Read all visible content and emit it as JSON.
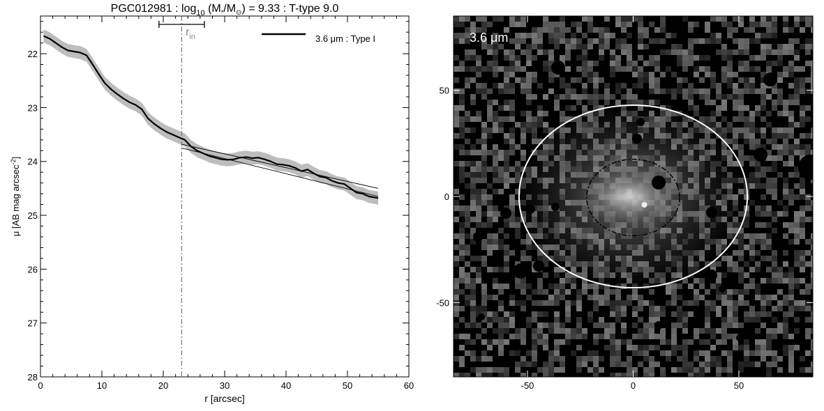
{
  "chart_data": [
    {
      "type": "line",
      "title": "PGC012981 : log",
      "title_sub": "10",
      "title_rest_a": " (M",
      "title_sub_star": "*",
      "title_rest_b": "/M",
      "title_sub_sun": "⊙",
      "title_rest_c": ") = 9.33 : T-type 9.0",
      "xlabel": "r [arcsec]",
      "ylabel": "μ [AB mag arcsec",
      "ylabel_sup": "-2",
      "ylabel_end": "]",
      "xlim": [
        0,
        60
      ],
      "ylim": [
        28,
        21.3
      ],
      "y_inverted": true,
      "xticks": [
        0,
        10,
        20,
        30,
        40,
        50,
        60
      ],
      "yticks": [
        22,
        23,
        24,
        25,
        26,
        27,
        28
      ],
      "legend_label": "3.6 μm : Type I",
      "legend_position": "top-right",
      "rin_label": "r",
      "rin_sub": "in",
      "rin_value": 23.0,
      "rin_errbar": [
        19.3,
        26.7
      ],
      "series": [
        {
          "name": "3.6 μm : Type I",
          "x": [
            0.5,
            1.5,
            2.5,
            3.5,
            4.5,
            5.5,
            6.5,
            7.5,
            8.5,
            9.5,
            10.5,
            11.5,
            12.5,
            13.5,
            14.5,
            15.5,
            16.5,
            17.5,
            18.5,
            19.5,
            20.5,
            21.5,
            22.5,
            23.5,
            24.5,
            25.5,
            26.5,
            27.5,
            28.5,
            29.5,
            30.5,
            31.5,
            32.5,
            33.5,
            34.5,
            35.5,
            36.5,
            37.5,
            38.5,
            39.5,
            40.5,
            41.5,
            42.5,
            43.5,
            44.5,
            45.5,
            46.5,
            47.5,
            48.5,
            49.5,
            50.5,
            51.5,
            52.5,
            53.5,
            55.0
          ],
          "y": [
            21.67,
            21.72,
            21.8,
            21.88,
            21.94,
            21.96,
            21.98,
            22.03,
            22.2,
            22.38,
            22.55,
            22.66,
            22.75,
            22.83,
            22.9,
            22.95,
            23.03,
            23.2,
            23.3,
            23.38,
            23.45,
            23.5,
            23.55,
            23.6,
            23.72,
            23.8,
            23.85,
            23.9,
            23.93,
            23.96,
            23.97,
            23.96,
            23.93,
            23.92,
            23.94,
            23.93,
            23.96,
            24.0,
            24.05,
            24.06,
            24.08,
            24.12,
            24.18,
            24.15,
            24.22,
            24.28,
            24.3,
            24.36,
            24.4,
            24.42,
            24.5,
            24.58,
            24.6,
            24.65,
            24.68
          ],
          "error": 0.12
        }
      ],
      "fits": [
        {
          "x": [
            23.0,
            55.0
          ],
          "y": [
            23.68,
            24.5
          ]
        },
        {
          "x": [
            23.0,
            55.0
          ],
          "y": [
            23.75,
            24.65
          ]
        }
      ]
    },
    {
      "type": "heatmap",
      "label": "3.6 μm",
      "xlim": [
        -85,
        85
      ],
      "ylim": [
        -85,
        85
      ],
      "xticks": [
        -50,
        0,
        50
      ],
      "yticks": [
        -50,
        0,
        50
      ],
      "outer_ellipse": {
        "cx": 0,
        "cy": 0,
        "a": 54,
        "b": 43
      },
      "inner_ellipse": {
        "cx": 0,
        "cy": -0.5,
        "a": 22,
        "b": 18
      }
    }
  ],
  "colors": {
    "profile": "#000000",
    "error_band": "#bdbdbd",
    "rin_line": "#777777",
    "rin_label": "#888888",
    "image_bg": "#000000",
    "outer_ellipse": "#ffffff",
    "inner_ellipse": "#000000"
  }
}
